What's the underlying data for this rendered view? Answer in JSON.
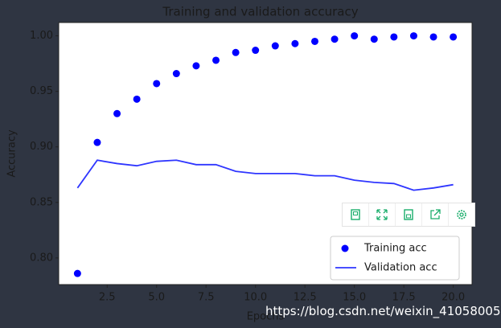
{
  "chart_data": {
    "type": "scatter-line",
    "title": "Training and validation accuracy",
    "x_label": "Epochs",
    "y_label": "Accuracy",
    "x": [
      1,
      2,
      3,
      4,
      5,
      6,
      7,
      8,
      9,
      10,
      11,
      12,
      13,
      14,
      15,
      16,
      17,
      18,
      19,
      20
    ],
    "series": [
      {
        "name": "Training acc",
        "color": "#0000ff",
        "style": "dots",
        "values": [
          0.786,
          0.904,
          0.93,
          0.943,
          0.957,
          0.966,
          0.973,
          0.978,
          0.985,
          0.987,
          0.991,
          0.993,
          0.995,
          0.997,
          1.0,
          0.997,
          0.999,
          1.0,
          0.999,
          0.999
        ]
      },
      {
        "name": "Validation acc",
        "color": "#2f36ff",
        "style": "line",
        "values": [
          0.863,
          0.888,
          0.885,
          0.883,
          0.887,
          0.888,
          0.884,
          0.884,
          0.878,
          0.876,
          0.876,
          0.876,
          0.874,
          0.874,
          0.87,
          0.868,
          0.867,
          0.861,
          0.863,
          0.866
        ]
      }
    ],
    "xlim": [
      0.05,
      20.95
    ],
    "ylim": [
      0.776,
      1.012
    ],
    "xticks": [
      2.5,
      {
        "value": 5,
        "label": "5.0"
      },
      7.5,
      {
        "value": 10,
        "label": "10.0"
      },
      12.5,
      {
        "value": 15,
        "label": "15.0"
      },
      17.5,
      {
        "value": 20,
        "label": "20.0"
      }
    ],
    "yticks": [
      {
        "value": 0.8,
        "label": "0.80"
      },
      0.85,
      {
        "value": 0.9,
        "label": "0.90"
      },
      0.95,
      {
        "value": 1,
        "label": "1.00"
      }
    ],
    "legend": "lower right"
  },
  "watermark": "https://blog.csdn.net/weixin_41058005"
}
